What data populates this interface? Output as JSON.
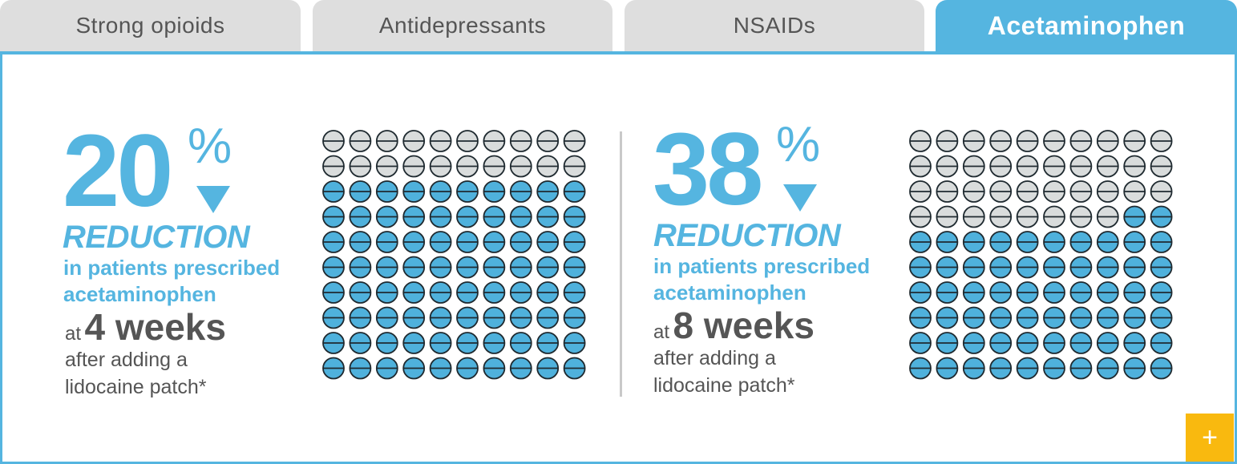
{
  "tabs": [
    {
      "label": "Strong opioids",
      "active": false
    },
    {
      "label": "Antidepressants",
      "active": false
    },
    {
      "label": "NSAIDs",
      "active": false
    },
    {
      "label": "Acetaminophen",
      "active": true
    }
  ],
  "stats": [
    {
      "number": "20",
      "percent_sign": "%",
      "reduction": "REDUCTION",
      "line1": "in patients prescribed",
      "line2": "acetaminophen",
      "at": "at",
      "weeks": "4 weeks",
      "line3": "after adding a",
      "line4": "lidocaine patch*",
      "pills_total": 100,
      "pills_reduced": 20
    },
    {
      "number": "38",
      "percent_sign": "%",
      "reduction": "REDUCTION",
      "line1": "in patients prescribed",
      "line2": "acetaminophen",
      "at": "at",
      "weeks": "8 weeks",
      "line3": "after adding a",
      "line4": "lidocaine patch*",
      "pills_total": 100,
      "pills_reduced": 38
    }
  ],
  "expand_button": {
    "icon": "plus-icon",
    "symbol": "+"
  },
  "colors": {
    "accent": "#55b5e0",
    "pill_blue": "#4fb1dc",
    "pill_gray": "#d9dcdc",
    "button": "#f9b90f",
    "text_gray": "#555555"
  }
}
